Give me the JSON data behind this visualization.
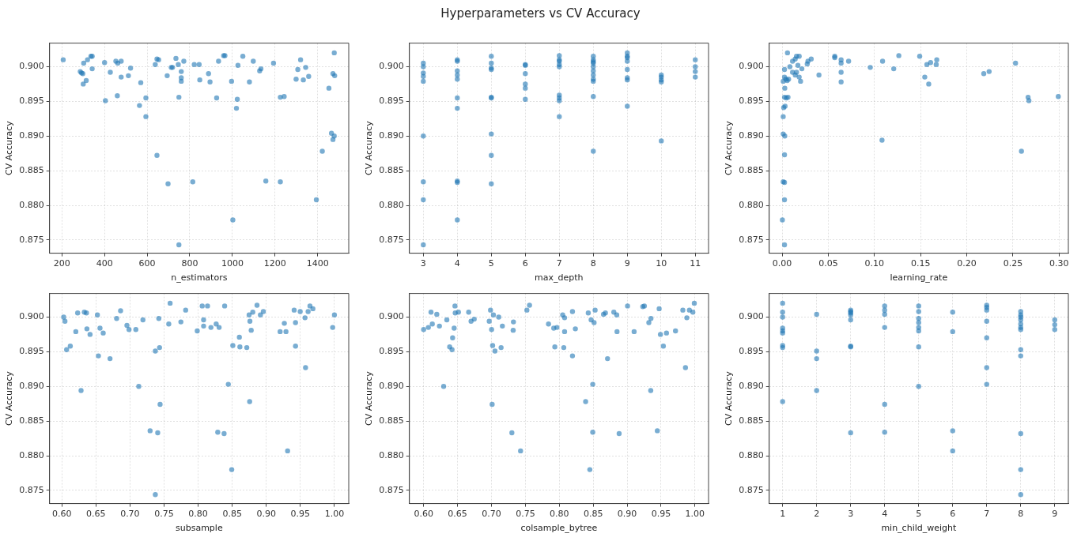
{
  "chart_data": [
    {
      "type": "other",
      "title": "Hyperparameters vs CV Accuracy"
    },
    {
      "type": "scatter",
      "xlabel": "n_estimators",
      "ylabel": "CV Accuracy",
      "color": "#1f77b4",
      "marker": "circle",
      "grid": true,
      "legend": false,
      "xlim": [
        142,
        1546
      ],
      "xticks": [
        200,
        400,
        600,
        800,
        1000,
        1200,
        1400
      ],
      "ylim": [
        0.8731,
        0.9034
      ],
      "yticks": [
        0.875,
        {
          "value": 0.88,
          "label": "0.880"
        },
        0.885,
        {
          "value": 0.89,
          "label": "0.890"
        },
        0.895,
        {
          "value": 0.9,
          "label": "0.900"
        }
      ],
      "x": [
        206,
        286,
        292,
        298,
        302,
        300,
        314,
        320,
        336,
        342,
        342,
        400,
        404,
        427,
        453,
        462,
        478,
        460,
        478,
        512,
        522,
        564,
        570,
        594,
        594,
        638,
        646,
        654,
        646,
        694,
        698,
        713,
        719,
        735,
        746,
        749,
        749,
        760,
        760,
        760,
        772,
        814,
        821,
        844,
        847,
        888,
        895,
        926,
        935,
        959,
        965,
        996,
        1002,
        1019,
        1023,
        1026,
        1049,
        1098,
        1080,
        1157,
        1128,
        1134,
        1193,
        1225,
        1225,
        1243,
        1299,
        1307,
        1320,
        1333,
        1344,
        1358,
        1394,
        1422,
        1453,
        1465,
        1472,
        1478,
        1478,
        1472,
        1480
      ],
      "values": [
        0.901,
        0.8993,
        0.8991,
        0.899,
        0.9005,
        0.8975,
        0.898,
        0.901,
        0.9015,
        0.9015,
        0.8997,
        0.9006,
        0.8951,
        0.8992,
        0.9008,
        0.9005,
        0.9008,
        0.8958,
        0.8985,
        0.8987,
        0.8998,
        0.8944,
        0.8977,
        0.8955,
        0.8928,
        0.9003,
        0.9011,
        0.901,
        0.8872,
        0.8987,
        0.8831,
        0.8999,
        0.8999,
        0.9012,
        0.9003,
        0.8956,
        0.8743,
        0.8993,
        0.8984,
        0.8979,
        0.9008,
        0.8834,
        0.9003,
        0.9003,
        0.8981,
        0.899,
        0.8978,
        0.8955,
        0.9008,
        0.9016,
        0.9016,
        0.8979,
        0.8779,
        0.894,
        0.8953,
        0.9002,
        0.9015,
        0.9008,
        0.8978,
        0.8835,
        0.8994,
        0.8997,
        0.9005,
        0.8834,
        0.8956,
        0.8957,
        0.8982,
        0.8996,
        0.901,
        0.8981,
        0.8999,
        0.8986,
        0.8808,
        0.8878,
        0.8969,
        0.8904,
        0.8895,
        0.89,
        0.902,
        0.899,
        0.8987
      ]
    },
    {
      "type": "scatter",
      "xlabel": "max_depth",
      "ylabel": "CV Accuracy",
      "color": "#1f77b4",
      "marker": "circle",
      "grid": true,
      "legend": false,
      "xlim": [
        2.59,
        11.39
      ],
      "xticks": [
        3,
        4,
        5,
        6,
        7,
        8,
        9,
        10,
        11
      ],
      "ylim": [
        0.8731,
        0.9034
      ],
      "yticks": [
        0.875,
        {
          "value": 0.88,
          "label": "0.880"
        },
        0.885,
        {
          "value": 0.89,
          "label": "0.890"
        },
        0.895,
        {
          "value": 0.9,
          "label": "0.900"
        }
      ],
      "x": [
        3,
        3,
        3,
        3,
        3,
        3,
        3,
        3,
        3,
        4,
        4,
        4,
        4,
        4,
        4,
        4,
        4,
        4,
        4,
        5,
        5,
        5,
        5,
        5,
        5,
        5,
        5,
        5,
        6,
        6,
        6,
        6,
        6,
        6,
        7,
        7,
        7,
        7,
        7,
        7,
        7,
        7,
        7,
        8,
        8,
        8,
        8,
        8,
        8,
        8,
        8,
        8,
        8,
        8,
        9,
        9,
        9,
        9,
        9,
        9,
        9,
        9,
        10,
        10,
        10,
        10,
        10,
        11,
        11,
        11,
        11
      ],
      "values": [
        0.9005,
        0.9,
        0.8991,
        0.8986,
        0.8979,
        0.89,
        0.8834,
        0.8808,
        0.8743,
        0.901,
        0.9008,
        0.8994,
        0.8988,
        0.8982,
        0.8955,
        0.894,
        0.8835,
        0.8833,
        0.8779,
        0.9015,
        0.9005,
        0.8998,
        0.8996,
        0.8956,
        0.8955,
        0.8903,
        0.8872,
        0.8831,
        0.9003,
        0.9002,
        0.899,
        0.8975,
        0.8969,
        0.8953,
        0.9016,
        0.901,
        0.9008,
        0.9003,
        0.9,
        0.8959,
        0.8955,
        0.8951,
        0.8928,
        0.9015,
        0.901,
        0.9007,
        0.9005,
        0.9,
        0.8994,
        0.8988,
        0.8982,
        0.8979,
        0.8957,
        0.8878,
        0.902,
        0.9015,
        0.9013,
        0.9008,
        0.8996,
        0.8984,
        0.8981,
        0.8943,
        0.8988,
        0.8985,
        0.8981,
        0.8978,
        0.8893,
        0.901,
        0.9,
        0.8993,
        0.8985
      ]
    },
    {
      "type": "scatter",
      "xlabel": "learning_rate",
      "ylabel": "CV Accuracy",
      "color": "#1f77b4",
      "marker": "circle",
      "grid": true,
      "legend": false,
      "xlim": [
        -0.014,
        0.31
      ],
      "xticks": [
        {
          "value": 0,
          "label": "0.00"
        },
        0.05,
        {
          "value": 0.1,
          "label": "0.10"
        },
        0.15,
        {
          "value": 0.2,
          "label": "0.20"
        },
        0.25,
        {
          "value": 0.3,
          "label": "0.30"
        }
      ],
      "ylim": [
        0.8731,
        0.9034
      ],
      "yticks": [
        0.875,
        {
          "value": 0.88,
          "label": "0.880"
        },
        0.885,
        {
          "value": 0.89,
          "label": "0.890"
        },
        0.895,
        {
          "value": 0.9,
          "label": "0.900"
        }
      ],
      "x": [
        0.0058,
        0.0026,
        0.0026,
        0.0012,
        0.004,
        0.0055,
        0.007,
        0.0029,
        0.0026,
        0.0046,
        0.0064,
        0.0032,
        0.0017,
        0.0012,
        0.0012,
        0.0029,
        0.0026,
        0.0012,
        0.0026,
        0.0026,
        0.0003,
        0.0026,
        0.0084,
        0.0113,
        0.0142,
        0.0156,
        0.0185,
        0.0113,
        0.0142,
        0.0156,
        0.0171,
        0.0185,
        0.02,
        0.0214,
        0.0272,
        0.028,
        0.0315,
        0.0399,
        0.057,
        0.057,
        0.0639,
        0.0639,
        0.0639,
        0.0639,
        0.072,
        0.0955,
        0.1088,
        0.1082,
        0.1209,
        0.1264,
        0.149,
        0.1545,
        0.1568,
        0.1588,
        0.1608,
        0.1675,
        0.1669,
        0.2184,
        0.2242,
        0.2528,
        0.2592,
        0.2664,
        0.2673,
        0.2991
      ],
      "values": [
        0.902,
        0.8996,
        0.8985,
        0.8979,
        0.8982,
        0.898,
        0.8982,
        0.8969,
        0.8956,
        0.8955,
        0.8956,
        0.8943,
        0.8941,
        0.8928,
        0.8903,
        0.89,
        0.8873,
        0.8834,
        0.8833,
        0.8808,
        0.8779,
        0.8743,
        0.9,
        0.9008,
        0.9011,
        0.9015,
        0.9015,
        0.8992,
        0.8988,
        0.8992,
        0.9002,
        0.8985,
        0.8979,
        0.8997,
        0.9004,
        0.9008,
        0.9011,
        0.8988,
        0.9015,
        0.9013,
        0.901,
        0.9005,
        0.8992,
        0.8978,
        0.9008,
        0.8999,
        0.9008,
        0.8894,
        0.8997,
        0.9016,
        0.9015,
        0.8985,
        0.9003,
        0.8975,
        0.9006,
        0.901,
        0.9003,
        0.899,
        0.8993,
        0.9005,
        0.8878,
        0.8956,
        0.8951,
        0.8957
      ]
    },
    {
      "type": "scatter",
      "xlabel": "subsample",
      "ylabel": "CV Accuracy",
      "color": "#1f77b4",
      "marker": "circle",
      "grid": true,
      "legend": false,
      "xlim": [
        0.582,
        1.021
      ],
      "xticks": [
        {
          "value": 0.6,
          "label": "0.60"
        },
        0.65,
        {
          "value": 0.7,
          "label": "0.70"
        },
        0.75,
        {
          "value": 0.8,
          "label": "0.80"
        },
        0.85,
        {
          "value": 0.9,
          "label": "0.90"
        },
        0.95,
        {
          "value": 1,
          "label": "1.00"
        }
      ],
      "ylim": [
        0.8731,
        0.9034
      ],
      "yticks": [
        0.875,
        {
          "value": 0.88,
          "label": "0.880"
        },
        0.885,
        {
          "value": 0.89,
          "label": "0.890"
        },
        0.895,
        {
          "value": 0.9,
          "label": "0.900"
        }
      ],
      "x": [
        0.6027,
        0.6046,
        0.607,
        0.6124,
        0.6205,
        0.6232,
        0.6282,
        0.633,
        0.6361,
        0.6368,
        0.6414,
        0.6522,
        0.6537,
        0.656,
        0.6607,
        0.6707,
        0.6804,
        0.6862,
        0.6955,
        0.6986,
        0.7086,
        0.7129,
        0.719,
        0.7295,
        0.7372,
        0.7372,
        0.7407,
        0.7423,
        0.7434,
        0.7442,
        0.7569,
        0.7589,
        0.7747,
        0.7817,
        0.7987,
        0.806,
        0.808,
        0.808,
        0.8138,
        0.8188,
        0.8265,
        0.8288,
        0.8308,
        0.8381,
        0.8389,
        0.8443,
        0.8493,
        0.8509,
        0.8605,
        0.8613,
        0.8714,
        0.8748,
        0.876,
        0.8756,
        0.8779,
        0.8802,
        0.8864,
        0.8914,
        0.8957,
        0.9203,
        0.9265,
        0.9289,
        0.9313,
        0.9409,
        0.9429,
        0.9429,
        0.9498,
        0.9568,
        0.9576,
        0.9614,
        0.9641,
        0.9684,
        0.9974,
        1.0
      ],
      "values": [
        0.9,
        0.8994,
        0.8953,
        0.8958,
        0.8979,
        0.9006,
        0.8894,
        0.9007,
        0.9006,
        0.8983,
        0.8975,
        0.9003,
        0.8944,
        0.8984,
        0.8977,
        0.894,
        0.8998,
        0.9009,
        0.8988,
        0.8982,
        0.8982,
        0.89,
        0.8996,
        0.8836,
        0.8951,
        0.8744,
        0.8833,
        0.8998,
        0.8956,
        0.8874,
        0.899,
        0.902,
        0.8993,
        0.901,
        0.898,
        0.9016,
        0.8996,
        0.8987,
        0.9016,
        0.8985,
        0.899,
        0.8834,
        0.8985,
        0.8832,
        0.9016,
        0.8903,
        0.878,
        0.8959,
        0.8971,
        0.8957,
        0.8956,
        0.9003,
        0.8994,
        0.8878,
        0.8981,
        0.9007,
        0.9017,
        0.9003,
        0.9008,
        0.8979,
        0.8991,
        0.8979,
        0.8807,
        0.901,
        0.8992,
        0.8958,
        0.9008,
        0.8999,
        0.8927,
        0.9008,
        0.9016,
        0.9012,
        0.8985,
        0.9003
      ]
    },
    {
      "type": "scatter",
      "xlabel": "colsample_bytree",
      "ylabel": "CV Accuracy",
      "color": "#1f77b4",
      "marker": "circle",
      "grid": true,
      "legend": false,
      "xlim": [
        0.579,
        1.02
      ],
      "xticks": [
        {
          "value": 0.6,
          "label": "0.60"
        },
        0.65,
        {
          "value": 0.7,
          "label": "0.70"
        },
        0.75,
        {
          "value": 0.8,
          "label": "0.80"
        },
        0.85,
        {
          "value": 0.9,
          "label": "0.90"
        },
        0.95,
        {
          "value": 1,
          "label": "1.00"
        }
      ],
      "ylim": [
        0.8731,
        0.9034
      ],
      "yticks": [
        0.875,
        {
          "value": 0.88,
          "label": "0.880"
        },
        0.885,
        {
          "value": 0.89,
          "label": "0.890"
        },
        0.895,
        {
          "value": 0.9,
          "label": "0.900"
        }
      ],
      "x": [
        0.6,
        0.607,
        0.6109,
        0.6128,
        0.6194,
        0.6233,
        0.6295,
        0.6342,
        0.6384,
        0.6419,
        0.6427,
        0.645,
        0.6462,
        0.6466,
        0.6513,
        0.6664,
        0.6699,
        0.6746,
        0.6967,
        0.6986,
        0.7002,
        0.701,
        0.7017,
        0.7029,
        0.7052,
        0.7107,
        0.7142,
        0.7161,
        0.7301,
        0.732,
        0.7324,
        0.7429,
        0.7522,
        0.7561,
        0.7841,
        0.7918,
        0.7965,
        0.7934,
        0.805,
        0.8066,
        0.8078,
        0.8078,
        0.8194,
        0.8194,
        0.8237,
        0.8388,
        0.8427,
        0.845,
        0.8469,
        0.8493,
        0.8493,
        0.8513,
        0.8528,
        0.8652,
        0.868,
        0.8711,
        0.8804,
        0.8847,
        0.8851,
        0.8882,
        0.9006,
        0.9103,
        0.9231,
        0.9254,
        0.932,
        0.9351,
        0.9348,
        0.9445,
        0.9472,
        0.9491,
        0.9534,
        0.958,
        0.9713,
        0.9821,
        0.986,
        0.988,
        0.9918,
        0.9969,
        0.999
      ],
      "values": [
        0.8982,
        0.8985,
        0.9007,
        0.899,
        0.9004,
        0.8987,
        0.89,
        0.8996,
        0.8957,
        0.8953,
        0.897,
        0.8984,
        0.9016,
        0.9006,
        0.9007,
        0.9007,
        0.8994,
        0.8997,
        0.8994,
        0.901,
        0.8982,
        0.8874,
        0.8959,
        0.9003,
        0.8951,
        0.9,
        0.8956,
        0.8987,
        0.8833,
        0.8981,
        0.8993,
        0.8807,
        0.901,
        0.9017,
        0.899,
        0.8984,
        0.8985,
        0.8957,
        0.9003,
        0.8956,
        0.8999,
        0.8979,
        0.9008,
        0.8944,
        0.8983,
        0.8878,
        0.9006,
        0.878,
        0.8996,
        0.8903,
        0.8834,
        0.8992,
        0.901,
        0.9004,
        0.9006,
        0.894,
        0.9007,
        0.9003,
        0.8979,
        0.8832,
        0.9016,
        0.8979,
        0.9015,
        0.9016,
        0.8992,
        0.8998,
        0.8894,
        0.8836,
        0.9012,
        0.8975,
        0.8958,
        0.8977,
        0.898,
        0.901,
        0.8927,
        0.8999,
        0.901,
        0.9007,
        0.902
      ]
    },
    {
      "type": "scatter",
      "xlabel": "min_child_weight",
      "ylabel": "CV Accuracy",
      "color": "#1f77b4",
      "marker": "circle",
      "grid": true,
      "legend": false,
      "xlim": [
        0.605,
        9.4
      ],
      "xticks": [
        1,
        2,
        3,
        4,
        5,
        6,
        7,
        8,
        9
      ],
      "ylim": [
        0.8731,
        0.9034
      ],
      "yticks": [
        0.875,
        {
          "value": 0.88,
          "label": "0.880"
        },
        0.885,
        {
          "value": 0.89,
          "label": "0.890"
        },
        0.895,
        {
          "value": 0.9,
          "label": "0.900"
        }
      ],
      "x": [
        1,
        1,
        1,
        1,
        1,
        1,
        1,
        1,
        1,
        2,
        2,
        2,
        2,
        3,
        3,
        3,
        3,
        3,
        3,
        3,
        3,
        4,
        4,
        4,
        4,
        4,
        4,
        5,
        5,
        5,
        5,
        5,
        5,
        5,
        5,
        6,
        6,
        6,
        6,
        7,
        7,
        7,
        7,
        7,
        7,
        7,
        8,
        8,
        8,
        8,
        8,
        8,
        8,
        8,
        8,
        8,
        8,
        8,
        9,
        9,
        9
      ],
      "values": [
        0.902,
        0.9007,
        0.9,
        0.8984,
        0.898,
        0.8977,
        0.8959,
        0.8956,
        0.8878,
        0.9004,
        0.8951,
        0.894,
        0.8894,
        0.901,
        0.9008,
        0.9006,
        0.9003,
        0.8996,
        0.8958,
        0.8957,
        0.8833,
        0.9016,
        0.901,
        0.9004,
        0.8985,
        0.8874,
        0.8834,
        0.9016,
        0.9008,
        0.8998,
        0.8992,
        0.8985,
        0.898,
        0.8957,
        0.89,
        0.9007,
        0.8979,
        0.8836,
        0.8807,
        0.9017,
        0.9014,
        0.901,
        0.8994,
        0.897,
        0.8927,
        0.8903,
        0.9008,
        0.9003,
        0.9,
        0.8996,
        0.899,
        0.8985,
        0.8982,
        0.8953,
        0.8944,
        0.8832,
        0.878,
        0.8744,
        0.8996,
        0.8989,
        0.8982
      ]
    }
  ]
}
